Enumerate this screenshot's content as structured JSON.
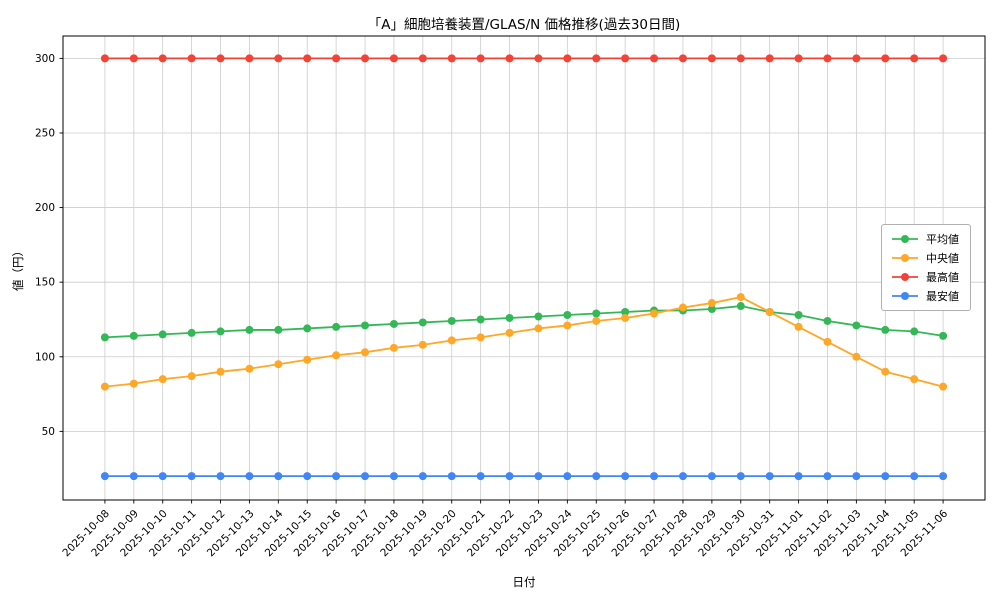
{
  "chart_data": {
    "type": "line",
    "title": "「A」細胞培養装置/GLAS/N 価格推移(過去30日間)",
    "xlabel": "日付",
    "ylabel": "値（円）",
    "x": [
      "2025-10-08",
      "2025-10-09",
      "2025-10-10",
      "2025-10-11",
      "2025-10-12",
      "2025-10-13",
      "2025-10-14",
      "2025-10-15",
      "2025-10-16",
      "2025-10-17",
      "2025-10-18",
      "2025-10-19",
      "2025-10-20",
      "2025-10-21",
      "2025-10-22",
      "2025-10-23",
      "2025-10-24",
      "2025-10-25",
      "2025-10-26",
      "2025-10-27",
      "2025-10-28",
      "2025-10-29",
      "2025-10-30",
      "2025-10-31",
      "2025-11-01",
      "2025-11-02",
      "2025-11-03",
      "2025-11-04",
      "2025-11-05",
      "2025-11-06"
    ],
    "yticks": [
      50,
      100,
      150,
      200,
      250,
      300
    ],
    "ylim": [
      4,
      315
    ],
    "x_margin": 0.05,
    "grid": true,
    "grid_color": "#cccccc",
    "legend_position": "center right",
    "series": [
      {
        "name": "平均値",
        "color": "#34b857",
        "values": [
          113,
          114,
          115,
          116,
          117,
          118,
          118,
          119,
          120,
          121,
          122,
          123,
          124,
          125,
          126,
          127,
          128,
          129,
          130,
          131,
          131,
          132,
          134,
          130,
          128,
          124,
          121,
          118,
          117,
          114
        ]
      },
      {
        "name": "中央値",
        "color": "#ffa726",
        "values": [
          80,
          82,
          85,
          87,
          90,
          92,
          95,
          98,
          101,
          103,
          106,
          108,
          111,
          113,
          116,
          119,
          121,
          124,
          126,
          129,
          133,
          136,
          140,
          130,
          120,
          110,
          100,
          90,
          85,
          80
        ]
      },
      {
        "name": "最高値",
        "color": "#f44336",
        "values": [
          300,
          300,
          300,
          300,
          300,
          300,
          300,
          300,
          300,
          300,
          300,
          300,
          300,
          300,
          300,
          300,
          300,
          300,
          300,
          300,
          300,
          300,
          300,
          300,
          300,
          300,
          300,
          300,
          300,
          300
        ]
      },
      {
        "name": "最安値",
        "color": "#4285f4",
        "values": [
          20,
          20,
          20,
          20,
          20,
          20,
          20,
          20,
          20,
          20,
          20,
          20,
          20,
          20,
          20,
          20,
          20,
          20,
          20,
          20,
          20,
          20,
          20,
          20,
          20,
          20,
          20,
          20,
          20,
          20
        ]
      }
    ]
  }
}
